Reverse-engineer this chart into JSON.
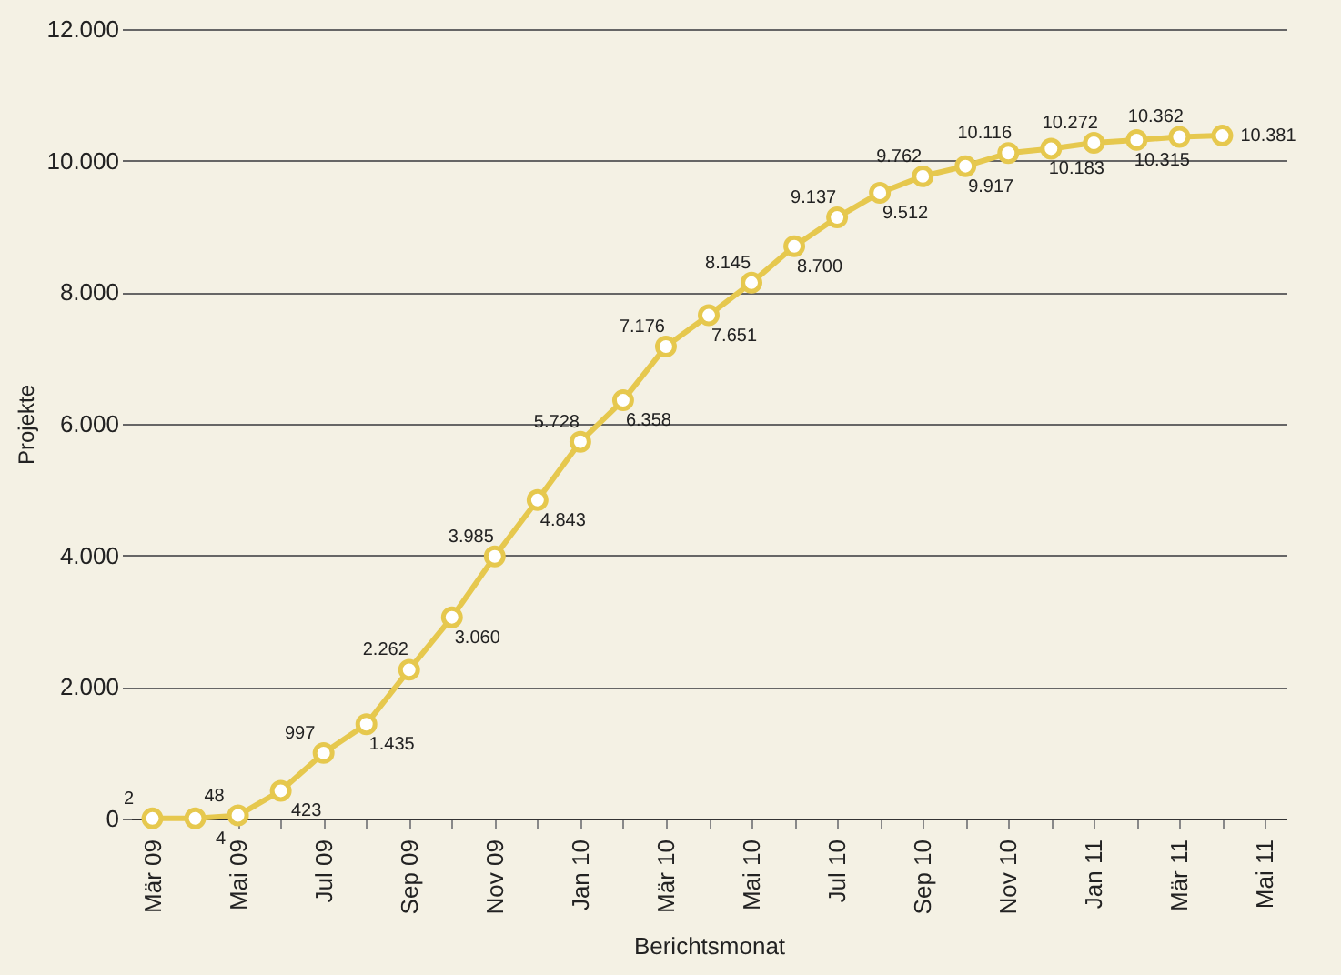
{
  "chart_data": {
    "type": "line",
    "xlabel": "Berichtsmonat",
    "ylabel": "Projekte",
    "categories": [
      "Mär 09",
      null,
      "Mai 09",
      null,
      "Jul 09",
      null,
      "Sep 09",
      null,
      "Nov 09",
      null,
      "Jan 10",
      null,
      "Mär 10",
      null,
      "Mai 10",
      null,
      "Jul 10",
      null,
      "Sep 10",
      null,
      "Nov 10",
      null,
      "Jan 11",
      null,
      "Mär 11",
      null,
      "Mai 11"
    ],
    "series": [
      {
        "color": "#e6c84e",
        "values": [
          2,
          4,
          48,
          423,
          997,
          1435,
          2262,
          3060,
          3985,
          4843,
          5728,
          6358,
          7176,
          7651,
          8145,
          8700,
          9137,
          9512,
          9762,
          9917,
          10116,
          10183,
          10272,
          10315,
          10362,
          10381,
          null
        ],
        "value_labels": [
          "2",
          "4",
          "48",
          "423",
          "997",
          "1.435",
          "2.262",
          "3.060",
          "3.985",
          "4.843",
          "5.728",
          "6.358",
          "7.176",
          "7.651",
          "8.145",
          "8.700",
          "9.137",
          "9.512",
          "9.762",
          "9.917",
          "10.116",
          "10.183",
          "10.272",
          "10.315",
          "10.362",
          "10.381",
          null
        ]
      }
    ],
    "ylim": [
      0,
      12000
    ],
    "yticks": [
      {
        "value": 0,
        "label": "0"
      },
      {
        "value": 2000,
        "label": "2.000"
      },
      {
        "value": 4000,
        "label": "4.000"
      },
      {
        "value": 6000,
        "label": "6.000"
      },
      {
        "value": 8000,
        "label": "8.000"
      },
      {
        "value": 10000,
        "label": "10.000"
      },
      {
        "value": 12000,
        "label": "12.000"
      }
    ],
    "grid": "y",
    "marker": "circle",
    "line_style": "solid",
    "legend": false
  }
}
